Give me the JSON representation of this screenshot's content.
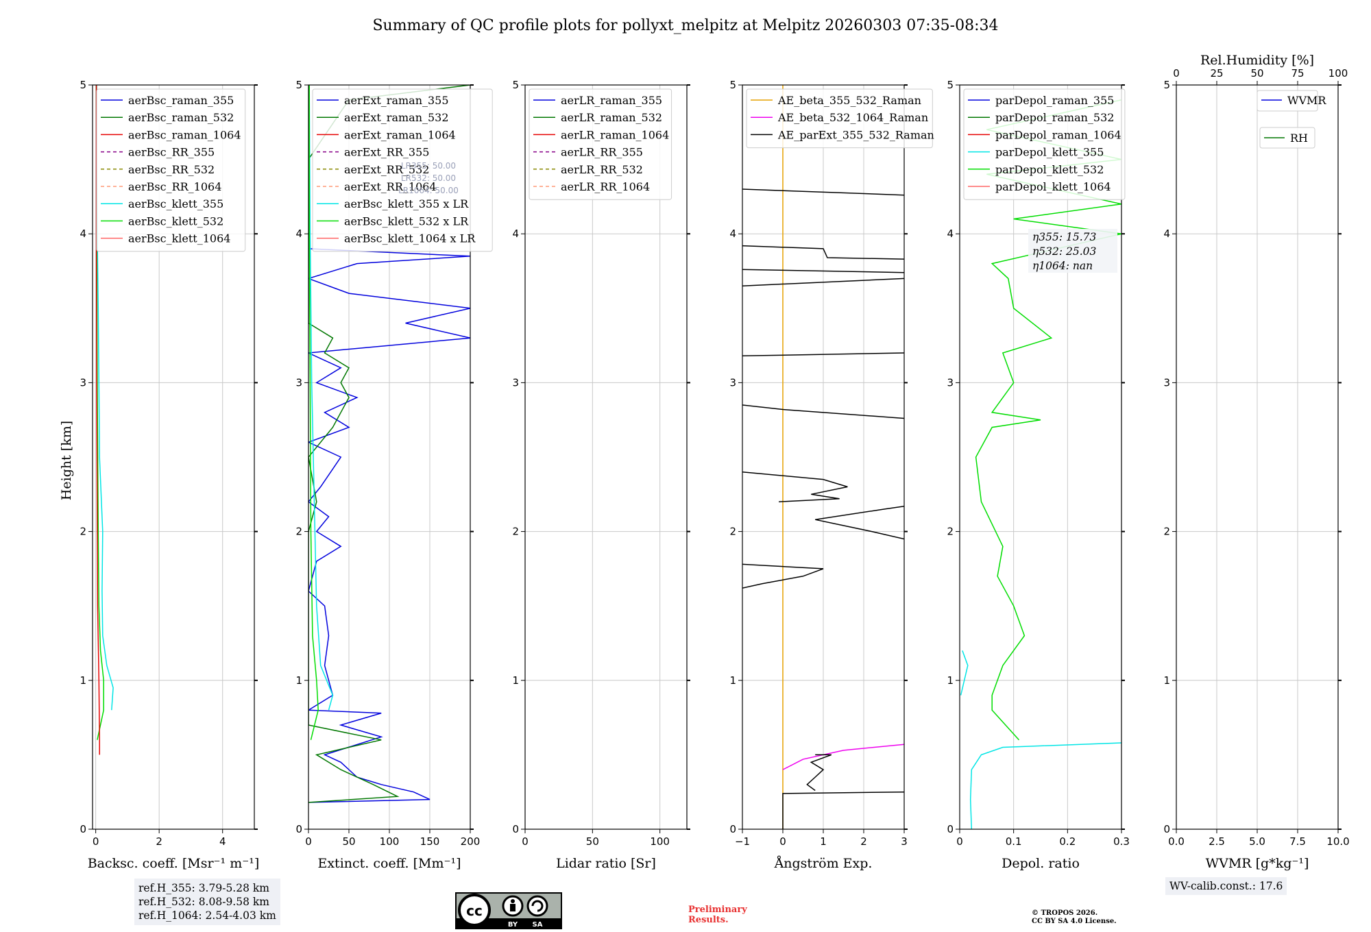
{
  "title": "Summary of QC profile plots for pollyxt_melpitz at Melpitz 20260303 07:35-08:34",
  "ylabel": "Height [km]",
  "chart_data": [
    {
      "type": "line",
      "id": "backscatter",
      "xlabel": "Backsc. coeff. [Msr⁻¹ m⁻¹]",
      "xlim": [
        -0.1,
        5.0
      ],
      "xticks": [
        0,
        2,
        4
      ],
      "ylim": [
        0,
        5
      ],
      "yticks": [
        0,
        1,
        2,
        3,
        4,
        5
      ],
      "legend": [
        "aerBsc_raman_355",
        "aerBsc_raman_532",
        "aerBsc_raman_1064",
        "aerBsc_RR_355",
        "aerBsc_RR_532",
        "aerBsc_RR_1064",
        "aerBsc_klett_355",
        "aerBsc_klett_532",
        "aerBsc_klett_1064"
      ],
      "series": [
        {
          "name": "aerBsc_klett_355",
          "color": "#00e5e5",
          "points": [
            [
              0.5,
              0.8
            ],
            [
              0.55,
              0.95
            ],
            [
              0.35,
              1.1
            ],
            [
              0.22,
              1.3
            ],
            [
              0.2,
              1.6
            ],
            [
              0.22,
              2.0
            ],
            [
              0.12,
              2.5
            ],
            [
              0.1,
              3.0
            ],
            [
              0.08,
              3.5
            ],
            [
              0.05,
              4.0
            ],
            [
              0.03,
              4.5
            ],
            [
              0.03,
              5.0
            ]
          ]
        },
        {
          "name": "aerBsc_klett_532",
          "color": "#00dd00",
          "points": [
            [
              0.05,
              0.6
            ],
            [
              0.25,
              0.8
            ],
            [
              0.25,
              1.0
            ],
            [
              0.15,
              1.2
            ],
            [
              0.1,
              1.5
            ],
            [
              0.08,
              2.0
            ],
            [
              0.05,
              3.0
            ],
            [
              0.03,
              4.0
            ],
            [
              0.02,
              5.0
            ]
          ]
        },
        {
          "name": "aerBsc_raman_1064",
          "color": "#e60000",
          "points": [
            [
              0.12,
              0.5
            ],
            [
              0.12,
              0.6
            ],
            [
              0.1,
              1.0
            ],
            [
              0.06,
              1.5
            ],
            [
              0.05,
              2.0
            ],
            [
              0.03,
              3.0
            ],
            [
              0.02,
              4.0
            ],
            [
              0.02,
              5.0
            ]
          ]
        }
      ]
    },
    {
      "type": "line",
      "id": "extinction",
      "xlabel": "Extinct. coeff. [Mm⁻¹]",
      "xlim": [
        0,
        200
      ],
      "xticks": [
        0,
        50,
        100,
        150,
        200
      ],
      "ylim": [
        0,
        5
      ],
      "yticks": [
        0,
        1,
        2,
        3,
        4,
        5
      ],
      "legend": [
        "aerExt_raman_355",
        "aerExt_raman_532",
        "aerExt_raman_1064",
        "aerExt_RR_355",
        "aerExt_RR_532",
        "aerExt_RR_1064",
        "aerBsc_klett_355 x LR",
        "aerBsc_klett_532 x LR",
        "aerBsc_klett_1064 x LR"
      ],
      "lr_labels": [
        "LR355: 50.00",
        "LR532: 50.00",
        "LR1064: 50.00"
      ],
      "series": [
        {
          "name": "aerExt_raman_355",
          "color": "#0000dd",
          "points": [
            [
              0,
              0.18
            ],
            [
              150,
              0.2
            ],
            [
              130,
              0.25
            ],
            [
              90,
              0.3
            ],
            [
              60,
              0.35
            ],
            [
              40,
              0.45
            ],
            [
              20,
              0.5
            ],
            [
              90,
              0.62
            ],
            [
              40,
              0.7
            ],
            [
              90,
              0.78
            ],
            [
              0,
              0.8
            ],
            [
              30,
              0.9
            ],
            [
              20,
              1.1
            ],
            [
              25,
              1.3
            ],
            [
              20,
              1.5
            ],
            [
              0,
              1.6
            ],
            [
              10,
              1.8
            ],
            [
              40,
              1.9
            ],
            [
              10,
              2.0
            ],
            [
              25,
              2.1
            ],
            [
              0,
              2.2
            ],
            [
              15,
              2.3
            ],
            [
              40,
              2.5
            ],
            [
              0,
              2.6
            ],
            [
              50,
              2.7
            ],
            [
              20,
              2.8
            ],
            [
              60,
              2.9
            ],
            [
              10,
              3.0
            ],
            [
              40,
              3.1
            ],
            [
              0,
              3.2
            ],
            [
              200,
              3.3
            ],
            [
              120,
              3.4
            ],
            [
              200,
              3.5
            ],
            [
              50,
              3.6
            ],
            [
              0,
              3.7
            ],
            [
              60,
              3.8
            ],
            [
              200,
              3.85
            ],
            [
              0,
              3.9
            ]
          ]
        },
        {
          "name": "aerExt_raman_532",
          "color": "#007700",
          "points": [
            [
              0,
              0.18
            ],
            [
              110,
              0.22
            ],
            [
              80,
              0.3
            ],
            [
              40,
              0.4
            ],
            [
              10,
              0.5
            ],
            [
              90,
              0.6
            ],
            [
              0,
              0.7
            ],
            [
              0,
              2.0
            ],
            [
              10,
              2.2
            ],
            [
              0,
              2.5
            ],
            [
              30,
              2.7
            ],
            [
              50,
              2.9
            ],
            [
              40,
              3.0
            ],
            [
              50,
              3.1
            ],
            [
              20,
              3.2
            ],
            [
              30,
              3.3
            ],
            [
              0,
              3.4
            ],
            [
              0,
              4.5
            ],
            [
              50,
              4.9
            ],
            [
              200,
              5.0
            ]
          ]
        },
        {
          "name": "aerBsc_klett_355 x LR",
          "color": "#00e5e5",
          "points": [
            [
              25,
              0.8
            ],
            [
              30,
              0.9
            ],
            [
              15,
              1.1
            ],
            [
              10,
              1.5
            ],
            [
              8,
              2.0
            ],
            [
              4,
              3.0
            ],
            [
              2,
              4.0
            ],
            [
              1,
              5.0
            ]
          ]
        },
        {
          "name": "aerBsc_klett_532 x LR",
          "color": "#00dd00",
          "points": [
            [
              3,
              0.6
            ],
            [
              12,
              0.8
            ],
            [
              10,
              1.0
            ],
            [
              5,
              1.3
            ],
            [
              3,
              2.0
            ],
            [
              2,
              3.0
            ],
            [
              1,
              4.0
            ],
            [
              1,
              5.0
            ]
          ]
        }
      ]
    },
    {
      "type": "line",
      "id": "lidar_ratio",
      "xlabel": "Lidar ratio [Sr]",
      "xlim": [
        0,
        120
      ],
      "xticks": [
        0,
        50,
        100
      ],
      "ylim": [
        0,
        5
      ],
      "yticks": [
        0,
        1,
        2,
        3,
        4,
        5
      ],
      "legend": [
        "aerLR_raman_355",
        "aerLR_raman_532",
        "aerLR_raman_1064",
        "aerLR_RR_355",
        "aerLR_RR_532",
        "aerLR_RR_1064"
      ],
      "series": []
    },
    {
      "type": "line",
      "id": "angstrom",
      "xlabel": "Ångström Exp.",
      "xlim": [
        -1,
        3
      ],
      "xticks": [
        -1,
        0,
        1,
        2,
        3
      ],
      "ylim": [
        0,
        5
      ],
      "yticks": [
        0,
        1,
        2,
        3,
        4,
        5
      ],
      "legend": [
        "AE_beta_355_532_Raman",
        "AE_beta_532_1064_Raman",
        "AE_parExt_355_532_Raman"
      ],
      "series": [
        {
          "name": "AE_beta_355_532_Raman",
          "color": "#e6a100",
          "points": [
            [
              0,
              0
            ],
            [
              0,
              5
            ]
          ]
        },
        {
          "name": "AE_beta_532_1064_Raman",
          "color": "#ee00ee",
          "points": [
            [
              0,
              0.4
            ],
            [
              0.5,
              0.47
            ],
            [
              1.5,
              0.53
            ],
            [
              3,
              0.57
            ]
          ]
        },
        {
          "name": "AE_parExt_355_532_Raman",
          "color": "#000000",
          "points": [
            [
              0,
              0
            ],
            [
              0,
              0.24
            ],
            [
              3,
              0.25
            ]
          ]
        },
        {
          "name": "AE_parExt_355_532_Raman",
          "color": "#000000",
          "points": [
            [
              0.8,
              0.26
            ],
            [
              0.6,
              0.3
            ],
            [
              0.8,
              0.35
            ],
            [
              1.0,
              0.4
            ],
            [
              0.7,
              0.45
            ],
            [
              1.2,
              0.5
            ],
            [
              0.8,
              0.5
            ]
          ]
        },
        {
          "name": "AE_parExt_355_532_Raman",
          "color": "#000000",
          "points": [
            [
              -1,
              1.62
            ],
            [
              -0.5,
              1.65
            ],
            [
              0.5,
              1.7
            ],
            [
              1.0,
              1.75
            ],
            [
              -1,
              1.78
            ]
          ]
        },
        {
          "name": "AE_parExt_355_532_Raman",
          "color": "#000000",
          "points": [
            [
              3,
              1.95
            ],
            [
              2.2,
              2.0
            ],
            [
              0.8,
              2.08
            ],
            [
              2.5,
              2.15
            ],
            [
              3,
              2.17
            ]
          ]
        },
        {
          "name": "AE_parExt_355_532_Raman",
          "color": "#000000",
          "points": [
            [
              -0.1,
              2.2
            ],
            [
              1.4,
              2.22
            ],
            [
              0.7,
              2.25
            ],
            [
              1.6,
              2.3
            ],
            [
              1.0,
              2.35
            ],
            [
              -1,
              2.4
            ]
          ]
        },
        {
          "name": "AE_parExt_355_532_Raman",
          "color": "#000000",
          "points": [
            [
              -1,
              2.85
            ],
            [
              0,
              2.82
            ],
            [
              3,
              2.76
            ]
          ]
        },
        {
          "name": "AE_parExt_355_532_Raman",
          "color": "#000000",
          "points": [
            [
              -1,
              3.18
            ],
            [
              3,
              3.2
            ]
          ]
        },
        {
          "name": "AE_parExt_355_532_Raman",
          "color": "#000000",
          "points": [
            [
              -1,
              3.65
            ],
            [
              3,
              3.7
            ]
          ]
        },
        {
          "name": "AE_parExt_355_532_Raman",
          "color": "#000000",
          "points": [
            [
              -1,
              3.76
            ],
            [
              3,
              3.74
            ]
          ]
        },
        {
          "name": "AE_parExt_355_532_Raman",
          "color": "#000000",
          "points": [
            [
              -1,
              3.92
            ],
            [
              1,
              3.9
            ],
            [
              1.1,
              3.84
            ],
            [
              3,
              3.83
            ]
          ]
        },
        {
          "name": "AE_parExt_355_532_Raman",
          "color": "#000000",
          "points": [
            [
              -1,
              4.3
            ],
            [
              3,
              4.26
            ]
          ]
        }
      ]
    },
    {
      "type": "line",
      "id": "depol",
      "xlabel": "Depol. ratio",
      "xlim": [
        0,
        0.3
      ],
      "xticks": [
        0,
        0.1,
        0.2,
        0.3
      ],
      "ylim": [
        0,
        5
      ],
      "yticks": [
        0,
        1,
        2,
        3,
        4,
        5
      ],
      "legend": [
        "parDepol_raman_355",
        "parDepol_raman_532",
        "parDepol_raman_1064",
        "parDepol_klett_355",
        "parDepol_klett_532",
        "parDepol_klett_1064"
      ],
      "eta_labels": [
        "η355: 15.73",
        "η532: 25.03",
        "η1064: nan"
      ],
      "series": [
        {
          "name": "parDepol_klett_355",
          "color": "#00e5e5",
          "points": [
            [
              0.022,
              0
            ],
            [
              0.02,
              0.2
            ],
            [
              0.022,
              0.4
            ],
            [
              0.04,
              0.5
            ],
            [
              0.08,
              0.55
            ],
            [
              0.3,
              0.58
            ]
          ]
        },
        {
          "name": "parDepol_klett_355",
          "color": "#00e5e5",
          "points": [
            [
              0.002,
              0.9
            ],
            [
              0.015,
              1.1
            ],
            [
              0.005,
              1.2
            ]
          ]
        },
        {
          "name": "parDepol_klett_532",
          "color": "#00dd00",
          "points": [
            [
              0.11,
              0.6
            ],
            [
              0.06,
              0.8
            ],
            [
              0.06,
              0.9
            ],
            [
              0.08,
              1.1
            ],
            [
              0.12,
              1.3
            ],
            [
              0.1,
              1.5
            ],
            [
              0.07,
              1.7
            ],
            [
              0.08,
              1.9
            ],
            [
              0.04,
              2.2
            ],
            [
              0.03,
              2.5
            ],
            [
              0.06,
              2.7
            ],
            [
              0.15,
              2.75
            ],
            [
              0.06,
              2.8
            ],
            [
              0.1,
              3.0
            ],
            [
              0.08,
              3.2
            ],
            [
              0.17,
              3.3
            ],
            [
              0.1,
              3.5
            ],
            [
              0.09,
              3.7
            ],
            [
              0.06,
              3.8
            ],
            [
              0.3,
              4.0
            ],
            [
              0.1,
              4.1
            ],
            [
              0.3,
              4.2
            ],
            [
              0.05,
              4.4
            ],
            [
              0.3,
              4.5
            ],
            [
              0.05,
              4.7
            ],
            [
              0.3,
              4.9
            ]
          ]
        }
      ]
    },
    {
      "type": "line",
      "id": "wvmr",
      "xlabel": "WVMR [g*kg⁻¹]",
      "xlim": [
        0,
        10
      ],
      "xticks": [
        "0.0",
        "2.5",
        "5.0",
        "7.5",
        "10.0"
      ],
      "top_xlabel": "Rel.Humidity [%]",
      "top_xlim": [
        0,
        100
      ],
      "top_xticks": [
        0,
        25,
        50,
        75,
        100
      ],
      "ylim": [
        0,
        5
      ],
      "yticks": [
        0,
        1,
        2,
        3,
        4,
        5
      ],
      "legend": [
        "WVMR",
        "RH"
      ],
      "series": []
    }
  ],
  "ref_heights": [
    "ref.H_355: 3.79-5.28 km",
    "ref.H_532: 8.08-9.58 km",
    "ref.H_1064: 2.54-4.03 km"
  ],
  "wv_calib": "WV-calib.const.: 17.6",
  "preliminary": [
    "Preliminary",
    "Results."
  ],
  "copyright": [
    "© TROPOS 2026.",
    "CC BY SA 4.0 License."
  ],
  "license_badge": [
    "BY",
    "SA"
  ]
}
